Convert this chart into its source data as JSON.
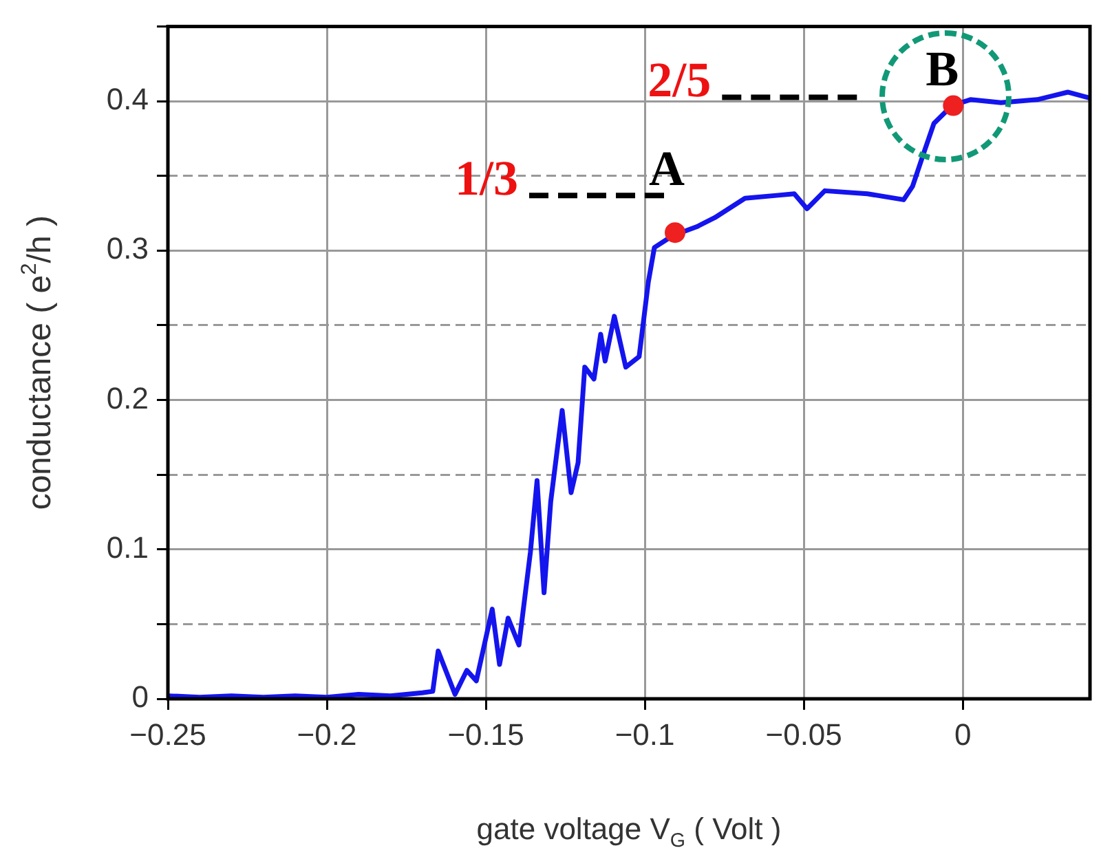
{
  "chart_data": {
    "type": "line",
    "xlabel": "gate voltage V$_{G}$ ( Volt )",
    "ylabel": "conductance ( e$^{2}$/h )",
    "xlim": [
      -0.25,
      0.04
    ],
    "ylim": [
      0,
      0.45
    ],
    "xticks": [
      {
        "value": -0.25,
        "label": "−0.25"
      },
      {
        "value": -0.2,
        "label": "−0.2"
      },
      {
        "value": -0.15,
        "label": "−0.15"
      },
      {
        "value": -0.1,
        "label": "−0.1"
      },
      {
        "value": -0.05,
        "label": "−0.05"
      },
      0
    ],
    "yticks": [
      0,
      {
        "value": 0.05,
        "label": null
      },
      0.1,
      {
        "value": 0.15,
        "label": null
      },
      0.2,
      {
        "value": 0.25,
        "label": null
      },
      0.3,
      {
        "value": 0.35,
        "label": null
      },
      0.4,
      {
        "value": 0.45,
        "label": null
      }
    ],
    "grid": true,
    "legend": false,
    "series": [
      {
        "color": "#1414ee",
        "x": [
          -0.25,
          -0.24,
          -0.23,
          -0.22,
          -0.21,
          -0.2,
          -0.19,
          -0.18,
          -0.17,
          -0.1667,
          -0.165,
          -0.1597,
          -0.156,
          -0.153,
          -0.148,
          -0.1457,
          -0.143,
          -0.1396,
          -0.136,
          -0.1339,
          -0.1317,
          -0.1296,
          -0.126,
          -0.1232,
          -0.121,
          -0.1189,
          -0.116,
          -0.1139,
          -0.1125,
          -0.1096,
          -0.106,
          -0.1018,
          -0.0989,
          -0.097,
          -0.0912,
          -0.0836,
          -0.078,
          -0.0685,
          -0.058,
          -0.053,
          -0.049,
          -0.0434,
          -0.03,
          -0.0186,
          -0.0158,
          -0.012,
          -0.0091,
          -0.0034,
          0.0024,
          0.012,
          0.0234,
          0.033,
          0.04
        ],
        "values": [
          0.002,
          0.001,
          0.002,
          0.001,
          0.002,
          0.001,
          0.003,
          0.002,
          0.004,
          0.005,
          0.032,
          0.003,
          0.019,
          0.012,
          0.06,
          0.023,
          0.054,
          0.036,
          0.098,
          0.146,
          0.071,
          0.132,
          0.193,
          0.138,
          0.158,
          0.222,
          0.214,
          0.244,
          0.226,
          0.256,
          0.222,
          0.229,
          0.279,
          0.302,
          0.31,
          0.316,
          0.322,
          0.335,
          0.337,
          0.338,
          0.328,
          0.34,
          0.338,
          0.334,
          0.343,
          0.367,
          0.385,
          0.397,
          0.401,
          0.399,
          0.401,
          0.406,
          0.402
        ]
      },
      {
        "type": "scatter",
        "color": "#ee2020",
        "marker": "circle",
        "x": [
          -0.0905,
          -0.003
        ],
        "values": [
          0.312,
          0.397
        ]
      }
    ],
    "annotations": [
      "1/3",
      "2/5",
      {
        "text": "A",
        "x": -0.0905,
        "y": 0.312
      },
      {
        "text": "B",
        "x": -0.003,
        "y": 0.397
      }
    ]
  }
}
